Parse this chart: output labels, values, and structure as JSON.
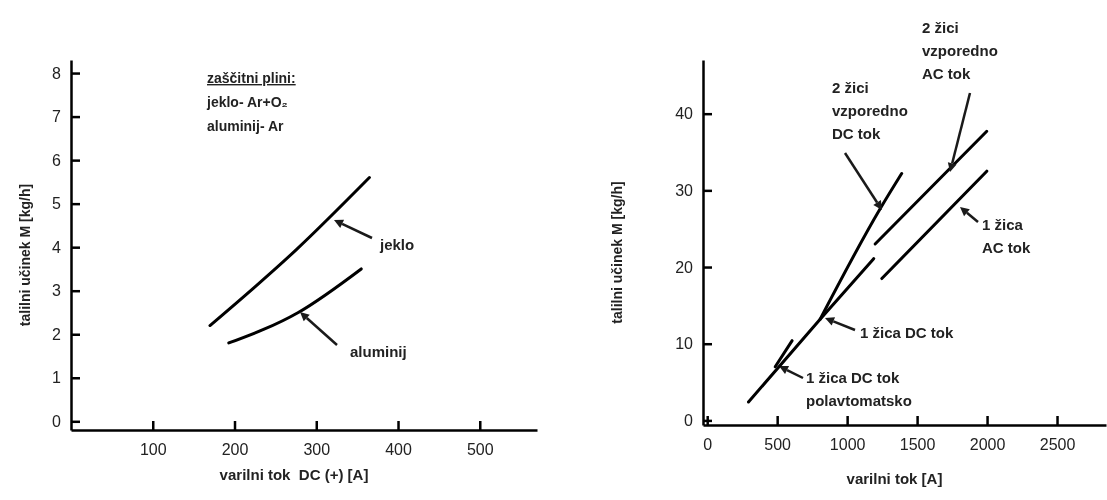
{
  "chart_data": [
    {
      "type": "line",
      "xlabel": "varilni tok  DC (+) [A]",
      "ylabel": "talilni učinek M [kg/h]",
      "xlim": [
        0,
        570
      ],
      "ylim": [
        -0.2,
        8.3
      ],
      "xticks": [
        100,
        200,
        300,
        400,
        500
      ],
      "yticks": [
        0,
        1,
        2,
        3,
        4,
        5,
        6,
        7,
        8
      ],
      "grid": false,
      "legend": false,
      "annotations": [
        "zaščitni plini:",
        "jeklo- Ar+O₂",
        "aluminij- Ar"
      ],
      "series": [
        {
          "name": "jeklo",
          "color": "#000000",
          "x": [
            170,
            276,
            365
          ],
          "values": [
            2.2,
            3.95,
            5.6
          ]
        },
        {
          "name": "aluminij",
          "color": "#000000",
          "x": [
            193,
            278,
            355
          ],
          "values": [
            1.8,
            2.5,
            3.5
          ]
        }
      ]
    },
    {
      "type": "line",
      "xlabel": "varilni tok [A]",
      "ylabel": "talilni učinek M [kg/h]",
      "xlim": [
        -30,
        2850
      ],
      "ylim": [
        -0.6,
        47
      ],
      "xticks": [
        0,
        500,
        1000,
        1500,
        2000,
        2500
      ],
      "yticks": [
        0,
        10,
        20,
        30,
        40
      ],
      "grid": false,
      "legend": false,
      "series": [
        {
          "name": "1 žica DC tok\npolavtomatsko",
          "color": "#000000",
          "x": [
            486,
            607
          ],
          "values": [
            7.0,
            10.4
          ]
        },
        {
          "name": "1 žica DC tok",
          "color": "#000000",
          "x": [
            295,
            807,
            1190
          ],
          "values": [
            2.4,
            13.2,
            21.1
          ]
        },
        {
          "name": "2 žici\nvzporedno\nDC tok",
          "color": "#000000",
          "x": [
            807,
            1236,
            1390
          ],
          "values": [
            13.2,
            27.6,
            32.2
          ]
        },
        {
          "name": "2 žici\nvzporedno\nAC tok",
          "color": "#000000",
          "x": [
            1200,
            1998
          ],
          "values": [
            23.0,
            37.7
          ]
        },
        {
          "name": "1 žica\nAC tok",
          "color": "#000000",
          "x": [
            1248,
            1998
          ],
          "values": [
            18.5,
            32.5
          ]
        }
      ]
    }
  ]
}
